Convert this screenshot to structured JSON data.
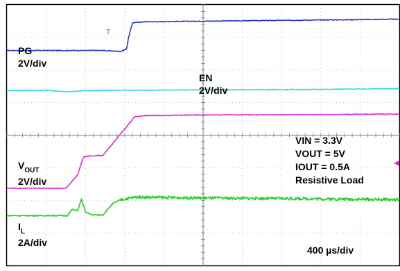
{
  "chart_data": {
    "type": "line",
    "time_scale": "400 µs/div",
    "x_divisions": 10,
    "y_divisions": 8,
    "grid": true,
    "trigger_marker": "T",
    "conditions": [
      "VIN = 3.3V",
      "VOUT = 5V",
      "IOUT = 0.5A",
      "Resistive Load"
    ],
    "series": [
      {
        "name": "PG",
        "scale": "2V/div",
        "color": "#1f2fc8",
        "x": [
          0,
          2.45,
          2.9,
          3.05,
          3.1,
          3.2,
          3.5,
          5.0,
          7.5,
          10
        ],
        "y": [
          6.6,
          6.6,
          6.57,
          6.65,
          7.0,
          7.45,
          7.48,
          7.5,
          7.53,
          7.56
        ]
      },
      {
        "name": "EN",
        "scale": "2V/div",
        "color": "#2fd8e0",
        "x": [
          0,
          1.0,
          1.5,
          2.0,
          3.0,
          5.0,
          7.5,
          10
        ],
        "y": [
          5.37,
          5.38,
          5.33,
          5.37,
          5.38,
          5.39,
          5.4,
          5.43
        ]
      },
      {
        "name": "VOUT",
        "scale": "2V/div",
        "color": "#e020d8",
        "x": [
          0,
          1.5,
          1.8,
          1.95,
          2.1,
          2.45,
          3.25,
          3.5,
          5.0,
          7.5,
          10
        ],
        "y": [
          2.37,
          2.37,
          2.78,
          3.33,
          3.36,
          3.38,
          4.56,
          4.6,
          4.62,
          4.63,
          4.65
        ]
      },
      {
        "name": "IL",
        "scale": "2A/div",
        "color": "#22d022",
        "x": [
          0,
          1.55,
          1.65,
          1.8,
          1.9,
          2.0,
          2.1,
          2.2,
          2.45,
          2.55,
          2.7,
          2.9,
          3.1,
          3.3,
          5.0,
          7.5,
          10
        ],
        "y": [
          1.53,
          1.53,
          1.72,
          1.68,
          2.03,
          1.65,
          1.58,
          1.55,
          1.55,
          1.7,
          1.9,
          2.02,
          2.06,
          2.1,
          2.07,
          2.05,
          2.02
        ]
      }
    ],
    "channel_labels": {
      "pg": {
        "name": "PG",
        "scale": "2V/div"
      },
      "en": {
        "name": "EN",
        "scale": "2V/div"
      },
      "vout": {
        "name_main": "V",
        "name_sub": "OUT",
        "scale": "2V/div"
      },
      "il": {
        "name_main": "I",
        "name_sub": "L",
        "scale": "2A/div"
      }
    }
  }
}
